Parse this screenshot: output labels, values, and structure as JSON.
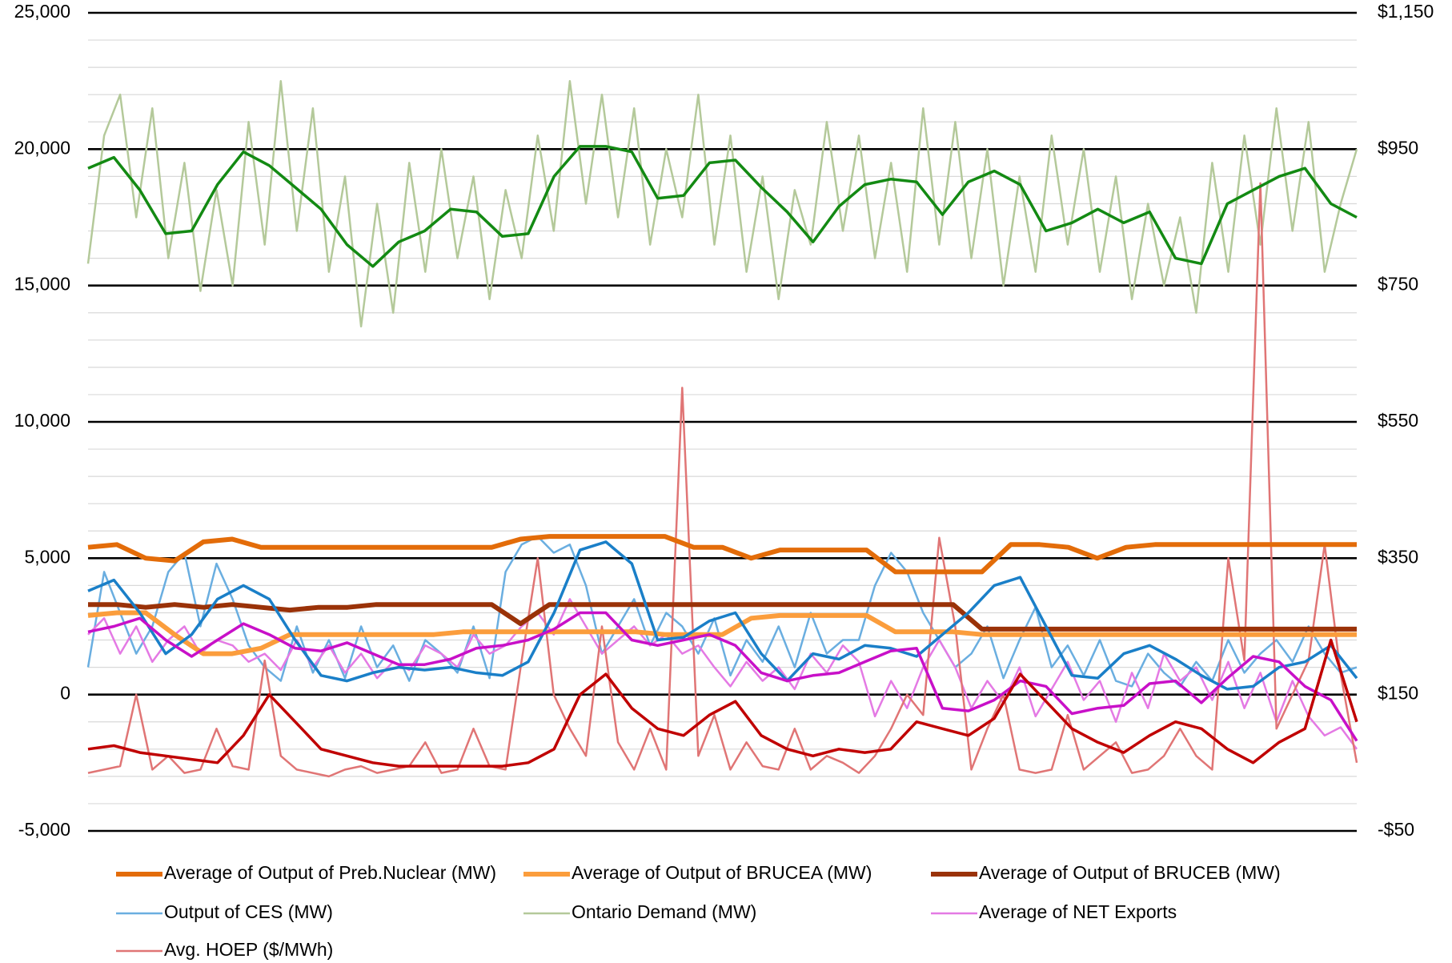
{
  "chart_data": {
    "type": "line",
    "ylim": [
      -5000,
      25000
    ],
    "yticks": [
      {
        "value": -5000,
        "label": "-5,000"
      },
      0,
      {
        "value": 5000,
        "label": "5,000"
      },
      {
        "value": 10000,
        "label": "10,000"
      },
      {
        "value": 15000,
        "label": "15,000"
      },
      {
        "value": 20000,
        "label": "20,000"
      },
      {
        "value": 25000,
        "label": "25,000"
      }
    ],
    "yminorticks": [
      -4000,
      -3000,
      -2000,
      -1000,
      1000,
      2000,
      3000,
      4000,
      6000,
      7000,
      8000,
      9000,
      11000,
      12000,
      13000,
      14000,
      16000,
      17000,
      18000,
      19000,
      21000,
      22000,
      23000,
      24000
    ],
    "y2lim": [
      -50,
      1150
    ],
    "y2ticks": [
      {
        "value": -50,
        "label": "-$50"
      },
      {
        "value": 150,
        "label": "$150"
      },
      {
        "value": 350,
        "label": "$350"
      },
      {
        "value": 550,
        "label": "$550"
      },
      {
        "value": 750,
        "label": "$750"
      },
      {
        "value": 950,
        "label": "$950"
      },
      {
        "value": 1150,
        "label": "$1,150"
      }
    ],
    "grid": true,
    "legend": "bottom",
    "series": [
      {
        "name": "Average of Output of Preb.Nuclear (MW)",
        "color": "#e36c09",
        "width": 6,
        "values": [
          5400,
          5500,
          5000,
          4900,
          5600,
          5700,
          5400,
          5400,
          5400,
          5400,
          5400,
          5400,
          5400,
          5400,
          5400,
          5700,
          5800,
          5800,
          5800,
          5800,
          5800,
          5400,
          5400,
          5000,
          5300,
          5300,
          5300,
          5300,
          4500,
          4500,
          4500,
          4500,
          5500,
          5500,
          5400,
          5000,
          5400,
          5500,
          5500,
          5500,
          5500,
          5500,
          5500,
          5500,
          5500
        ]
      },
      {
        "name": "Average of Output of BRUCEA (MW)",
        "color": "#fb9d3c",
        "width": 6,
        "values": [
          2900,
          3000,
          3000,
          2200,
          1500,
          1500,
          1700,
          2200,
          2200,
          2200,
          2200,
          2200,
          2200,
          2300,
          2300,
          2300,
          2300,
          2300,
          2300,
          2300,
          2200,
          2200,
          2200,
          2800,
          2900,
          2900,
          2900,
          2900,
          2300,
          2300,
          2300,
          2200,
          2200,
          2200,
          2200,
          2200,
          2200,
          2200,
          2200,
          2200,
          2200,
          2200,
          2200,
          2200,
          2200
        ]
      },
      {
        "name": "Average of Output of BRUCEB (MW)",
        "color": "#9a3208",
        "width": 6,
        "values": [
          3300,
          3300,
          3200,
          3300,
          3200,
          3300,
          3200,
          3100,
          3200,
          3200,
          3300,
          3300,
          3300,
          3300,
          3300,
          2600,
          3300,
          3300,
          3300,
          3300,
          3300,
          3300,
          3300,
          3300,
          3300,
          3300,
          3300,
          3300,
          3300,
          3300,
          3300,
          2400,
          2400,
          2400,
          2400,
          2400,
          2400,
          2400,
          2400,
          2400,
          2400,
          2400,
          2400,
          2400,
          2400
        ]
      },
      {
        "name": "Output of CES (MW)",
        "color": "#6aaee0",
        "width": 2.5,
        "values": [
          1000,
          4500,
          3000,
          1500,
          2500,
          4500,
          5200,
          2500,
          4800,
          3500,
          1800,
          1000,
          500,
          2500,
          800,
          2000,
          600,
          2500,
          1000,
          1800,
          500,
          2000,
          1500,
          800,
          2500,
          600,
          4500,
          5500,
          5800,
          5200,
          5500,
          4000,
          1500,
          2500,
          3500,
          1800,
          3000,
          2500,
          1500,
          2800,
          700,
          2000,
          1200,
          2500,
          1000,
          3000,
          1500,
          2000,
          2000,
          4000,
          5200,
          4500,
          3000,
          2000,
          1000,
          1500,
          2500,
          600,
          2000,
          3200,
          1000,
          1800,
          700,
          2000,
          500,
          300,
          1500,
          800,
          300,
          1200,
          500,
          2000,
          800,
          1500,
          2000,
          1200,
          2500,
          1500,
          800,
          1000
        ]
      },
      {
        "name": "Ontario Demand (MW)",
        "color": "#b4c99a",
        "width": 2.5,
        "values": [
          15800,
          20500,
          22000,
          17500,
          21500,
          16000,
          19500,
          14800,
          18500,
          15000,
          21000,
          16500,
          22500,
          17000,
          21500,
          15500,
          19000,
          13500,
          18000,
          14000,
          19500,
          15500,
          20000,
          16000,
          19000,
          14500,
          18500,
          16000,
          20500,
          17000,
          22500,
          18000,
          22000,
          17500,
          21500,
          16500,
          20000,
          17500,
          22000,
          16500,
          20500,
          15500,
          19000,
          14500,
          18500,
          16500,
          21000,
          17000,
          20500,
          16000,
          19500,
          15500,
          21500,
          16500,
          21000,
          16000,
          20000,
          15000,
          19000,
          15500,
          20500,
          16500,
          20000,
          15500,
          19000,
          14500,
          18000,
          15000,
          17500,
          14000,
          19500,
          15500,
          20500,
          16500,
          21500,
          17000,
          21000,
          15500,
          18000,
          20000
        ]
      },
      {
        "name": "Average of NET Exports",
        "color": "#e47ae4",
        "width": 2.5,
        "values": [
          2200,
          2800,
          1500,
          2500,
          1200,
          2000,
          2500,
          1500,
          2000,
          1800,
          1200,
          1500,
          900,
          2000,
          1000,
          1800,
          800,
          1500,
          600,
          1200,
          900,
          1800,
          1500,
          1000,
          2200,
          1500,
          1800,
          2500,
          3000,
          2200,
          3500,
          2500,
          1500,
          2000,
          2500,
          1800,
          2200,
          1500,
          1800,
          1000,
          300,
          1200,
          500,
          1000,
          200,
          1500,
          800,
          1800,
          1200,
          -800,
          500,
          -500,
          1000,
          2000,
          1000,
          -500,
          500,
          -300,
          1000,
          -800,
          200,
          1200,
          -200,
          500,
          -1000,
          800,
          -500,
          1500,
          500,
          1000,
          -200,
          1200,
          -500,
          800,
          -1000,
          500,
          -800,
          -1500,
          -1200,
          -2000
        ]
      },
      {
        "name": "Avg. HOEP ($/MWh)",
        "color": "#e07575",
        "width": 2.5,
        "axis": "y2",
        "values": [
          35,
          40,
          45,
          150,
          40,
          60,
          35,
          40,
          100,
          45,
          40,
          200,
          60,
          40,
          35,
          30,
          40,
          45,
          35,
          40,
          45,
          80,
          35,
          40,
          100,
          45,
          40,
          200,
          350,
          150,
          100,
          60,
          250,
          80,
          40,
          100,
          40,
          600,
          60,
          120,
          40,
          80,
          45,
          40,
          100,
          40,
          60,
          50,
          35,
          60,
          100,
          150,
          120,
          380,
          250,
          40,
          100,
          150,
          40,
          35,
          40,
          120,
          40,
          60,
          80,
          35,
          40,
          60,
          100,
          60,
          40,
          350,
          200,
          900,
          100,
          150,
          200,
          370,
          180,
          50
        ]
      }
    ],
    "trendlines": [
      {
        "color": "#1a7fc8",
        "values": [
          3800,
          4200,
          3000,
          1500,
          2200,
          3500,
          4000,
          3500,
          2000,
          700,
          500,
          800,
          1000,
          900,
          1000,
          800,
          700,
          1200,
          3000,
          5300,
          5600,
          4800,
          2000,
          2100,
          2700,
          3000,
          1500,
          500,
          1500,
          1300,
          1800,
          1700,
          1400,
          2200,
          3000,
          4000,
          4300,
          2500,
          700,
          600,
          1500,
          1800,
          1300,
          700,
          200,
          300,
          1000,
          1200,
          1800,
          600
        ]
      },
      {
        "color": "#138a13",
        "values": [
          19300,
          19700,
          18500,
          16900,
          17000,
          18700,
          19900,
          19400,
          18600,
          17800,
          16500,
          15700,
          16600,
          17000,
          17800,
          17700,
          16800,
          16900,
          19000,
          20100,
          20100,
          19900,
          18200,
          18300,
          19500,
          19600,
          18600,
          17700,
          16600,
          17900,
          18700,
          18900,
          18800,
          17600,
          18800,
          19200,
          18700,
          17000,
          17300,
          17800,
          17300,
          17700,
          16000,
          15800,
          18000,
          18500,
          19000,
          19300,
          18000,
          17500
        ]
      },
      {
        "color": "#c810c8",
        "values": [
          2300,
          2500,
          2800,
          2000,
          1400,
          2000,
          2600,
          2200,
          1700,
          1600,
          1900,
          1500,
          1100,
          1100,
          1300,
          1700,
          1800,
          2000,
          2400,
          3000,
          3000,
          2000,
          1800,
          2000,
          2200,
          1800,
          800,
          500,
          700,
          800,
          1200,
          1600,
          1700,
          -500,
          -600,
          -200,
          500,
          300,
          -700,
          -500,
          -400,
          400,
          500,
          -300,
          600,
          1400,
          1200,
          300,
          -200,
          -1700
        ]
      },
      {
        "color": "#c00000",
        "axis": "y2",
        "values": [
          70,
          75,
          65,
          60,
          55,
          50,
          90,
          150,
          110,
          70,
          60,
          50,
          45,
          45,
          45,
          45,
          45,
          50,
          70,
          150,
          180,
          130,
          100,
          90,
          120,
          140,
          90,
          70,
          60,
          70,
          65,
          70,
          110,
          100,
          90,
          115,
          180,
          140,
          100,
          80,
          65,
          90,
          110,
          100,
          70,
          50,
          80,
          100,
          230,
          110
        ]
      }
    ]
  }
}
